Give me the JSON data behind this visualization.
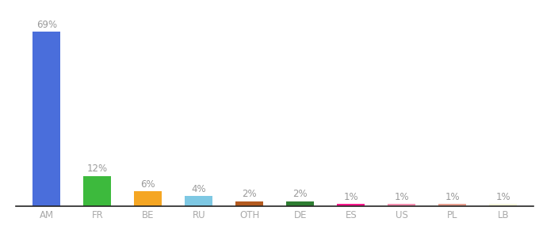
{
  "categories": [
    "AM",
    "FR",
    "BE",
    "RU",
    "OTH",
    "DE",
    "ES",
    "US",
    "PL",
    "LB"
  ],
  "values": [
    69,
    12,
    6,
    4,
    2,
    2,
    1,
    1,
    1,
    1
  ],
  "colors": [
    "#4a6edb",
    "#3dba3d",
    "#f5a623",
    "#7ec8e3",
    "#b35a1f",
    "#2e7d32",
    "#ff1a8c",
    "#f48fb1",
    "#e8a090",
    "#f5f5dc"
  ],
  "label_fontsize": 8.5,
  "tick_fontsize": 8.5,
  "ylim": [
    0,
    75
  ],
  "bar_width": 0.55,
  "label_color": "#999999",
  "tick_color": "#aaaaaa",
  "bottom_spine_color": "#222222"
}
